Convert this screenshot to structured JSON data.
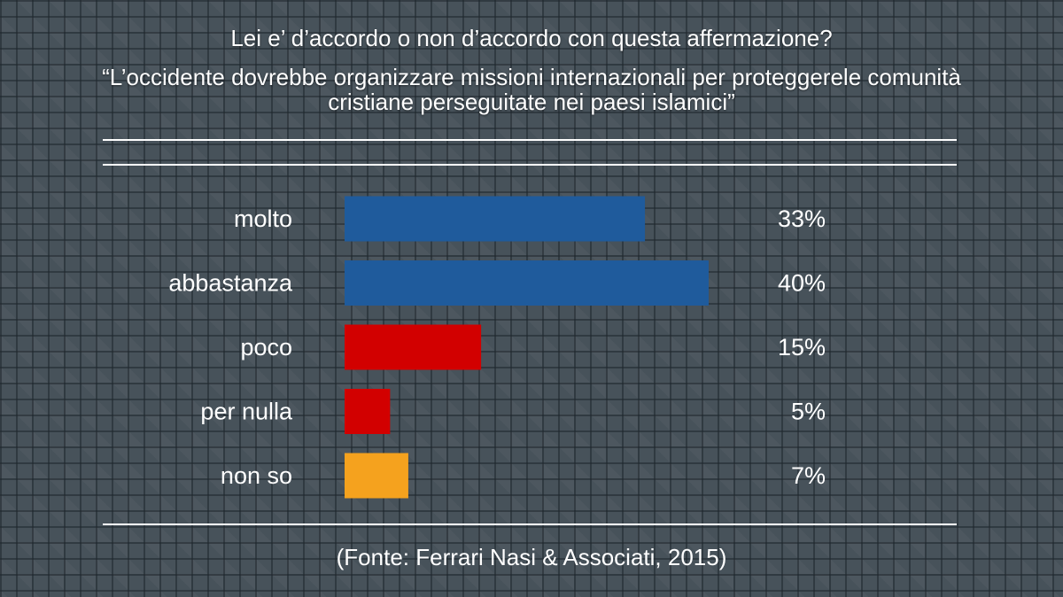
{
  "title": {
    "question": "Lei e’ d’accordo o non d’accordo con questa affermazione?",
    "statement_line1": "“L’occidente dovrebbe organizzare missioni internazionali per proteggerele comunità",
    "statement_line2": "cristiane perseguitate nei paesi islamici”"
  },
  "source": "(Fonte: Ferrari Nasi & Associati, 2015)",
  "chart_data": {
    "type": "bar",
    "orientation": "horizontal",
    "categories": [
      "molto",
      "abbastanza",
      "poco",
      "per nulla",
      "non so"
    ],
    "values": [
      33,
      40,
      15,
      5,
      7
    ],
    "value_labels": [
      "33%",
      "40%",
      "15%",
      "5%",
      "7%"
    ],
    "unit": "%",
    "colors": [
      "#1f5b9c",
      "#1f5b9c",
      "#d20000",
      "#d20000",
      "#f5a21e"
    ],
    "xlim": [
      0,
      40
    ],
    "grid": false,
    "legend": "none"
  }
}
